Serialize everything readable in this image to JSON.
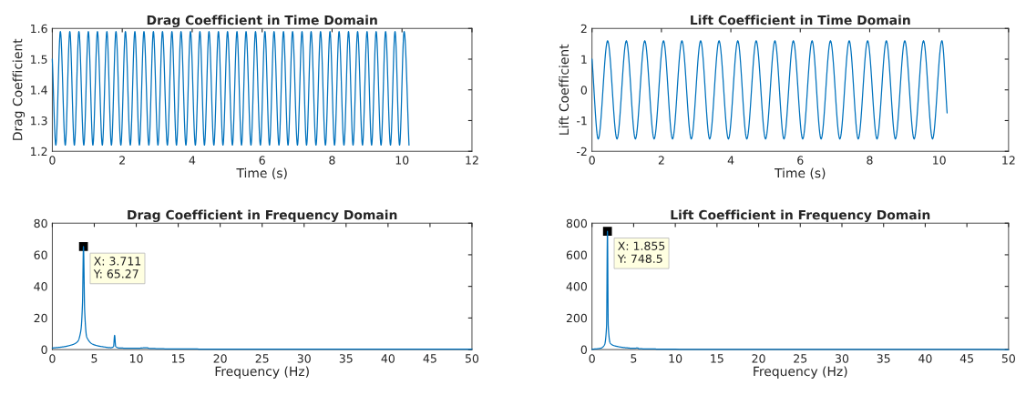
{
  "chart_data": [
    {
      "type": "line",
      "title": "Drag Coefficient in Time Domain",
      "xlabel": "Time (s)",
      "ylabel": "Drag Coefficient",
      "xlim": [
        0,
        12
      ],
      "xticks": [
        0,
        2,
        4,
        6,
        8,
        10,
        12
      ],
      "ylim": [
        1.2,
        1.6
      ],
      "yticks": [
        1.2,
        1.3,
        1.4,
        1.5,
        1.6
      ],
      "series": [
        {
          "color": "#0072bd",
          "x": [
            0,
            0.1,
            0.23,
            0.37,
            0.5,
            0.63,
            0.76,
            0.9,
            1.03,
            1.16,
            1.29,
            1.43,
            1.56,
            1.69,
            1.82,
            1.96,
            2.09,
            2.23,
            2.36,
            2.49,
            2.62,
            2.76,
            2.89,
            3.02,
            3.15,
            3.29,
            3.42,
            3.55,
            3.68,
            3.82,
            3.95,
            4.09,
            4.22,
            4.35,
            4.48,
            4.62,
            4.75,
            4.88,
            5.01,
            5.15,
            5.28,
            5.41,
            5.54,
            5.68,
            5.81,
            5.95,
            6.08,
            6.21,
            6.34,
            6.48,
            6.61,
            6.74,
            6.87,
            7.01,
            7.14,
            7.27,
            7.4,
            7.54,
            7.67,
            7.81,
            7.94,
            8.07,
            8.2,
            8.34,
            8.47,
            8.6,
            8.73,
            8.87,
            9.0,
            9.13,
            9.26,
            9.4,
            9.53,
            9.67,
            9.8,
            9.93,
            10.06,
            10.2
          ],
          "values": [
            1.5,
            1.22,
            1.59,
            1.22,
            1.59,
            1.22,
            1.59,
            1.22,
            1.59,
            1.22,
            1.59,
            1.22,
            1.59,
            1.22,
            1.59,
            1.22,
            1.59,
            1.22,
            1.59,
            1.22,
            1.59,
            1.22,
            1.59,
            1.22,
            1.59,
            1.22,
            1.59,
            1.22,
            1.59,
            1.22,
            1.59,
            1.22,
            1.59,
            1.22,
            1.59,
            1.22,
            1.59,
            1.22,
            1.59,
            1.22,
            1.59,
            1.22,
            1.59,
            1.22,
            1.59,
            1.22,
            1.59,
            1.22,
            1.59,
            1.22,
            1.59,
            1.22,
            1.59,
            1.22,
            1.59,
            1.22,
            1.59,
            1.22,
            1.59,
            1.22,
            1.59,
            1.22,
            1.59,
            1.22,
            1.59,
            1.22,
            1.59,
            1.22,
            1.59,
            1.22,
            1.59,
            1.22,
            1.59,
            1.22,
            1.59,
            1.22,
            1.59,
            1.22
          ]
        }
      ]
    },
    {
      "type": "line",
      "title": "Lift Coefficient in Time Domain",
      "xlabel": "Time (s)",
      "ylabel": "Lift Coefficient",
      "xlim": [
        0,
        12
      ],
      "xticks": [
        0,
        2,
        4,
        6,
        8,
        10,
        12
      ],
      "ylim": [
        -2,
        2
      ],
      "yticks": [
        -2,
        -1,
        0,
        1,
        2
      ],
      "series": [
        {
          "color": "#0072bd",
          "x": [
            0,
            0.18,
            0.45,
            0.72,
            0.99,
            1.25,
            1.52,
            1.79,
            2.06,
            2.32,
            2.59,
            2.86,
            3.13,
            3.39,
            3.66,
            3.93,
            4.2,
            4.46,
            4.73,
            5.0,
            5.27,
            5.53,
            5.8,
            6.07,
            6.34,
            6.6,
            6.87,
            7.14,
            7.41,
            7.67,
            7.94,
            8.21,
            8.48,
            8.74,
            9.01,
            9.28,
            9.55,
            9.81,
            10.08,
            10.23
          ],
          "values": [
            1.0,
            -1.6,
            1.6,
            -1.6,
            1.6,
            -1.6,
            1.6,
            -1.6,
            1.6,
            -1.6,
            1.6,
            -1.6,
            1.6,
            -1.6,
            1.6,
            -1.6,
            1.6,
            -1.6,
            1.6,
            -1.6,
            1.6,
            -1.6,
            1.6,
            -1.6,
            1.6,
            -1.6,
            1.6,
            -1.6,
            1.6,
            -1.6,
            1.6,
            -1.6,
            1.6,
            -1.6,
            1.6,
            -1.6,
            1.6,
            -1.6,
            1.6,
            -0.75
          ]
        }
      ]
    },
    {
      "type": "line",
      "title": "Drag Coefficient in Frequency Domain",
      "xlabel": "Frequency (Hz)",
      "xlim": [
        0,
        50
      ],
      "xticks": [
        0,
        5,
        10,
        15,
        20,
        25,
        30,
        35,
        40,
        45,
        50
      ],
      "ylim": [
        0,
        80
      ],
      "yticks": [
        0,
        20,
        40,
        60,
        80
      ],
      "annotations": [
        {
          "text": "X: 3.711\nY: 65.27",
          "x": 3.711,
          "y": 65.27
        }
      ],
      "series": [
        {
          "color": "#0072bd",
          "x": [
            0,
            1,
            2,
            3,
            3.4,
            3.6,
            3.711,
            3.85,
            4.1,
            5,
            6,
            7,
            7.3,
            7.42,
            7.55,
            8,
            10,
            11.3,
            11.5,
            15,
            20,
            30,
            40,
            50
          ],
          "values": [
            1,
            1.5,
            2.5,
            5,
            12,
            30,
            65.27,
            25,
            8,
            3,
            1.8,
            1.2,
            2,
            9,
            2,
            1,
            0.8,
            1.2,
            0.8,
            0.4,
            0.3,
            0.2,
            0.2,
            0.2
          ]
        }
      ]
    },
    {
      "type": "line",
      "title": "Lift Coefficient in Frequency Domain",
      "xlabel": "Frequency (Hz)",
      "xlim": [
        0,
        50
      ],
      "xticks": [
        0,
        5,
        10,
        15,
        20,
        25,
        30,
        35,
        40,
        45,
        50
      ],
      "ylim": [
        0,
        800
      ],
      "yticks": [
        0,
        200,
        400,
        600,
        800
      ],
      "annotations": [
        {
          "text": "X: 1.855\nY: 748.5",
          "x": 1.855,
          "y": 748.5
        }
      ],
      "series": [
        {
          "color": "#0072bd",
          "x": [
            0,
            1,
            1.5,
            1.75,
            1.855,
            1.95,
            2.2,
            3,
            4,
            5,
            5.5,
            5.6,
            7,
            10,
            20,
            50
          ],
          "values": [
            2,
            8,
            30,
            150,
            748.5,
            150,
            40,
            20,
            12,
            8,
            10,
            6,
            4,
            2,
            1,
            0.5
          ]
        }
      ]
    }
  ]
}
